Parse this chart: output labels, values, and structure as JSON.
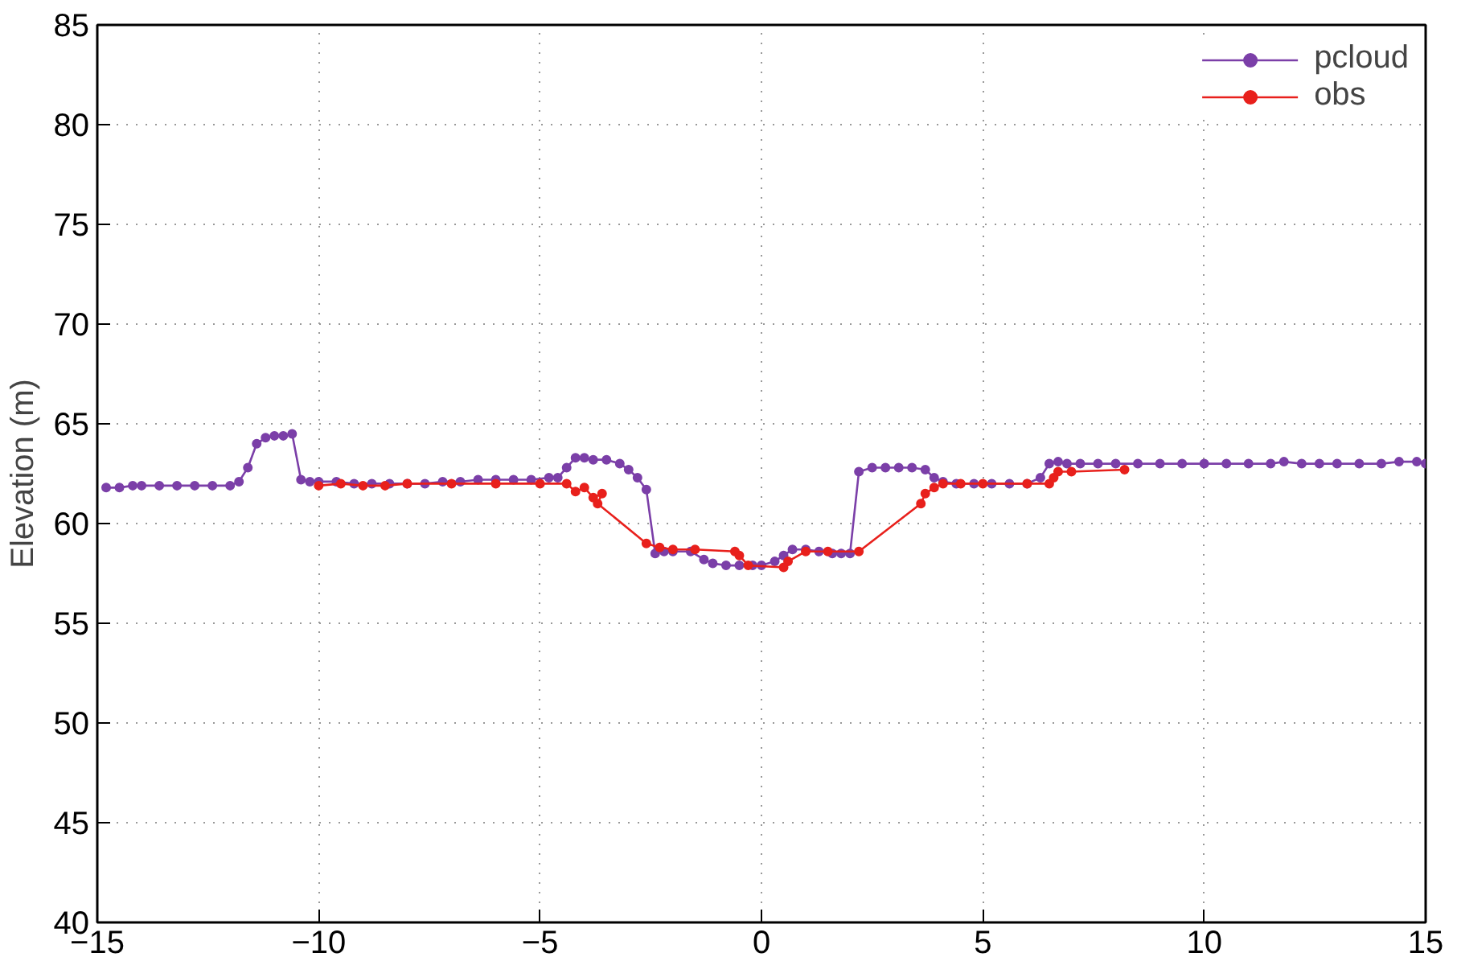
{
  "chart_data": {
    "type": "line",
    "ylabel": "Elevation (m)",
    "xlim": [
      -15,
      15
    ],
    "ylim": [
      40,
      85
    ],
    "xticks": [
      -15,
      -10,
      -5,
      0,
      5,
      10,
      15
    ],
    "yticks": [
      40,
      45,
      50,
      55,
      60,
      65,
      70,
      75,
      80,
      85
    ],
    "grid": true,
    "legend": "top right",
    "marker": "circle",
    "line_style": "solid",
    "series": [
      {
        "name": "pcloud",
        "color": "#7b3fa8",
        "x": [
          -14.8,
          -14.5,
          -14.2,
          -14,
          -13.6,
          -13.2,
          -12.8,
          -12.4,
          -12,
          -11.8,
          -11.6,
          -11.4,
          -11.2,
          -11,
          -10.8,
          -10.6,
          -10.4,
          -10.2,
          -10,
          -9.6,
          -9.2,
          -8.8,
          -8.4,
          -8,
          -7.6,
          -7.2,
          -6.8,
          -6.4,
          -6,
          -5.6,
          -5.2,
          -4.8,
          -4.6,
          -4.4,
          -4.2,
          -4,
          -3.8,
          -3.5,
          -3.2,
          -3,
          -2.8,
          -2.6,
          -2.4,
          -2.2,
          -2,
          -1.6,
          -1.3,
          -1.1,
          -0.8,
          -0.5,
          -0.2,
          0,
          0.3,
          0.5,
          0.7,
          1,
          1.3,
          1.6,
          1.8,
          2,
          2.2,
          2.5,
          2.8,
          3.1,
          3.4,
          3.7,
          3.9,
          4.1,
          4.4,
          4.8,
          5.2,
          5.6,
          6,
          6.3,
          6.5,
          6.7,
          6.9,
          7.2,
          7.6,
          8,
          8.5,
          9,
          9.5,
          10,
          10.5,
          11,
          11.5,
          11.8,
          12.2,
          12.6,
          13,
          13.5,
          14,
          14.4,
          14.8,
          15
        ],
        "values": [
          61.8,
          61.8,
          61.9,
          61.9,
          61.9,
          61.9,
          61.9,
          61.9,
          61.9,
          62.1,
          62.8,
          64,
          64.3,
          64.4,
          64.4,
          64.5,
          62.2,
          62.1,
          62.1,
          62.1,
          62,
          62,
          62,
          62,
          62,
          62.1,
          62.1,
          62.2,
          62.2,
          62.2,
          62.2,
          62.3,
          62.3,
          62.8,
          63.3,
          63.3,
          63.2,
          63.2,
          63,
          62.7,
          62.3,
          61.7,
          58.5,
          58.6,
          58.6,
          58.6,
          58.2,
          58,
          57.9,
          57.9,
          57.9,
          57.9,
          58.1,
          58.4,
          58.7,
          58.7,
          58.6,
          58.5,
          58.5,
          58.5,
          62.6,
          62.8,
          62.8,
          62.8,
          62.8,
          62.7,
          62.3,
          62.1,
          62,
          62,
          62,
          62,
          62,
          62.3,
          63,
          63.1,
          63,
          63,
          63,
          63,
          63,
          63,
          63,
          63,
          63,
          63,
          63,
          63.1,
          63,
          63,
          63,
          63,
          63,
          63.1,
          63.1,
          63
        ]
      },
      {
        "name": "obs",
        "color": "#e8201c",
        "x": [
          -10,
          -9.5,
          -9,
          -8.5,
          -8,
          -7,
          -6,
          -5,
          -4.4,
          -4.2,
          -4,
          -3.8,
          -3.6,
          -3.7,
          -2.6,
          -2.3,
          -2,
          -1.5,
          -0.6,
          -0.5,
          -0.3,
          0.5,
          0.6,
          1,
          1.5,
          2.2,
          3.6,
          3.7,
          3.9,
          4.1,
          4.5,
          5,
          6,
          6.5,
          6.6,
          6.7,
          7,
          8.2
        ],
        "values": [
          61.9,
          62,
          61.9,
          61.9,
          62,
          62,
          62,
          62,
          62,
          61.6,
          61.8,
          61.3,
          61.5,
          61,
          59,
          58.8,
          58.7,
          58.7,
          58.6,
          58.4,
          57.9,
          57.8,
          58.1,
          58.6,
          58.6,
          58.6,
          61,
          61.5,
          61.8,
          62,
          62,
          62,
          62,
          62,
          62.3,
          62.6,
          62.6,
          62.7
        ]
      }
    ]
  }
}
